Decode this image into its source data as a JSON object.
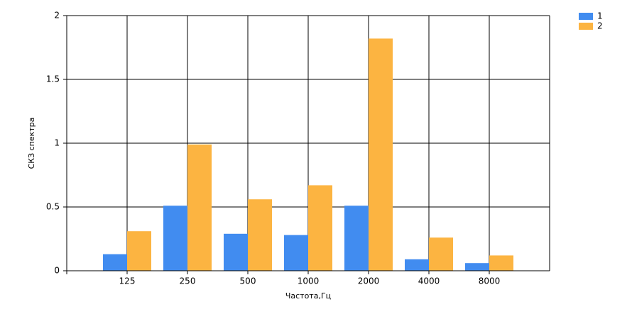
{
  "chart_data": {
    "type": "bar",
    "x_label": "Частота,Гц",
    "y_label": "СКЗ спектра",
    "categories": [
      "125",
      "250",
      "500",
      "1000",
      "2000",
      "4000",
      "8000"
    ],
    "series": [
      {
        "name": "1",
        "color": "#418cf0",
        "values": [
          0.13,
          0.51,
          0.29,
          0.28,
          0.51,
          0.09,
          0.06
        ]
      },
      {
        "name": "2",
        "color": "#fcb441",
        "values": [
          0.31,
          0.99,
          0.56,
          0.67,
          1.82,
          0.26,
          0.12
        ]
      }
    ],
    "ylim": [
      0,
      2
    ],
    "yticks": [
      0,
      0.5,
      1,
      1.5,
      2
    ],
    "grid": true,
    "legend": "top-right"
  }
}
